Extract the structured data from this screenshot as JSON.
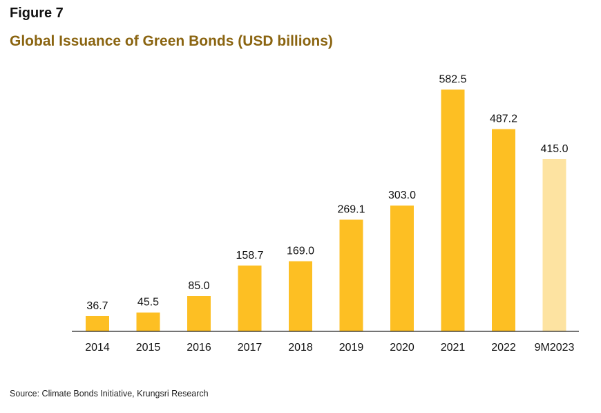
{
  "figure_label": "Figure 7",
  "source": "Source: Climate Bonds Initiative, Krungsri Research",
  "chart_data": {
    "type": "bar",
    "title": "Global Issuance of Green Bonds (USD billions)",
    "xlabel": "",
    "ylabel": "",
    "categories": [
      "2014",
      "2015",
      "2016",
      "2017",
      "2018",
      "2019",
      "2020",
      "2021",
      "2022",
      "9M2023"
    ],
    "values": [
      36.7,
      45.5,
      85.0,
      158.7,
      169.0,
      269.1,
      303.0,
      582.5,
      487.2,
      415.0
    ],
    "data_labels": [
      "36.7",
      "45.5",
      "85.0",
      "158.7",
      "169.0",
      "269.1",
      "303.0",
      "582.5",
      "487.2",
      "415.0"
    ],
    "ylim": [
      0,
      600
    ],
    "grid": false,
    "legend": "none",
    "colors": {
      "bar": "#fdbf23",
      "bar_partial": "#fde3a1",
      "title": "#8a6410",
      "axis": "#222222"
    }
  }
}
